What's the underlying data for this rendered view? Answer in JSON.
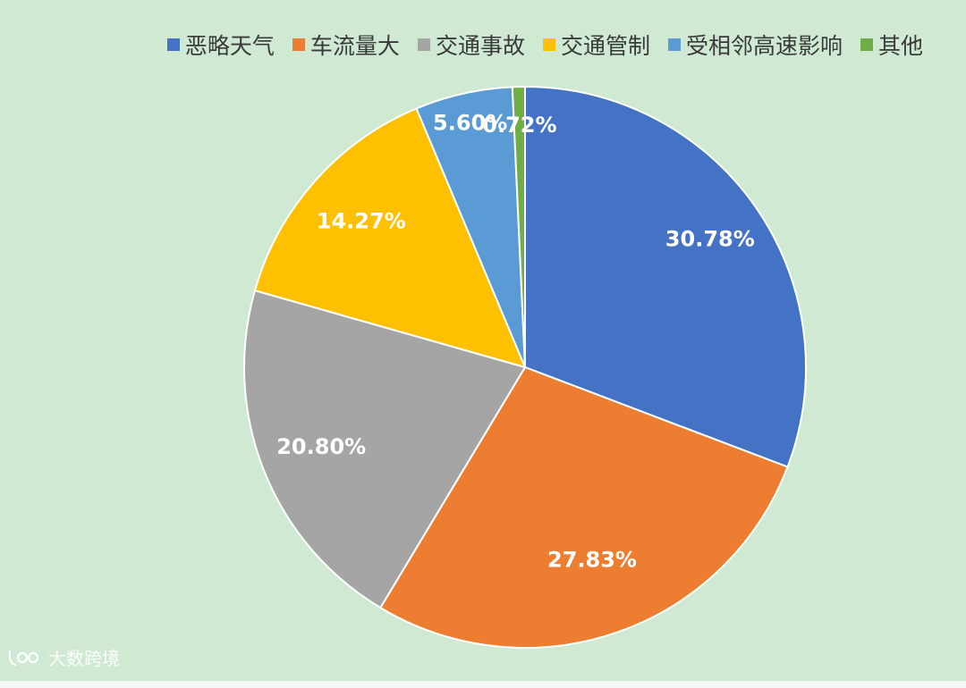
{
  "chart_data": {
    "type": "pie",
    "categories": [
      "恶略天气",
      "车流量大",
      "交通事故",
      "交通管制",
      "受相邻高速影响",
      "其他"
    ],
    "values": [
      30.78,
      27.83,
      20.8,
      14.27,
      5.6,
      0.72
    ],
    "value_labels": [
      "30.78%",
      "27.83%",
      "20.80%",
      "14.27%",
      "5.60%",
      "0.72%"
    ],
    "colors": [
      "#4472c4",
      "#ed7d31",
      "#a5a5a5",
      "#ffc000",
      "#5b9bd5",
      "#70ad47"
    ],
    "start_angle": "12 o'clock",
    "direction": "clockwise",
    "legend_position": "top"
  },
  "watermark": {
    "text": "大数跨境"
  }
}
